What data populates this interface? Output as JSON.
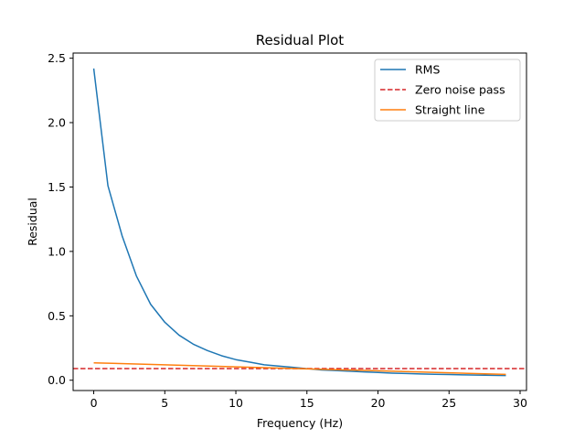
{
  "chart_data": {
    "type": "line",
    "title": "Residual Plot",
    "xlabel": "Frequency (Hz)",
    "ylabel": "Residual",
    "xlim": [
      -1.45,
      30.45
    ],
    "ylim": [
      -0.08,
      2.54
    ],
    "xticks": [
      0,
      5,
      10,
      15,
      20,
      25,
      30
    ],
    "yticks": [
      0.0,
      0.5,
      1.0,
      1.5,
      2.0,
      2.5
    ],
    "xtick_labels": [
      "0",
      "5",
      "10",
      "15",
      "20",
      "25",
      "30"
    ],
    "ytick_labels": [
      "0.0",
      "0.5",
      "1.0",
      "1.5",
      "2.0",
      "2.5"
    ],
    "grid": false,
    "legend_position": "top-right",
    "series": [
      {
        "name": "RMS",
        "color": "#1f77b4",
        "style": "solid",
        "x": [
          0,
          1,
          2,
          3,
          4,
          5,
          6,
          7,
          8,
          9,
          10,
          11,
          12,
          13,
          14,
          15,
          16,
          17,
          18,
          19,
          20,
          21,
          22,
          23,
          24,
          25,
          26,
          27,
          28,
          29
        ],
        "y": [
          2.42,
          1.51,
          1.12,
          0.81,
          0.59,
          0.45,
          0.35,
          0.28,
          0.23,
          0.19,
          0.16,
          0.14,
          0.12,
          0.11,
          0.1,
          0.09,
          0.08,
          0.075,
          0.07,
          0.065,
          0.06,
          0.055,
          0.052,
          0.049,
          0.046,
          0.044,
          0.042,
          0.04,
          0.038,
          0.036
        ]
      },
      {
        "name": "Zero noise pass",
        "color": "#d62728",
        "style": "dashed",
        "hline": 0.09
      },
      {
        "name": "Straight line",
        "color": "#ff7f0e",
        "style": "solid",
        "x": [
          0,
          29
        ],
        "y": [
          0.135,
          0.045
        ]
      }
    ]
  }
}
